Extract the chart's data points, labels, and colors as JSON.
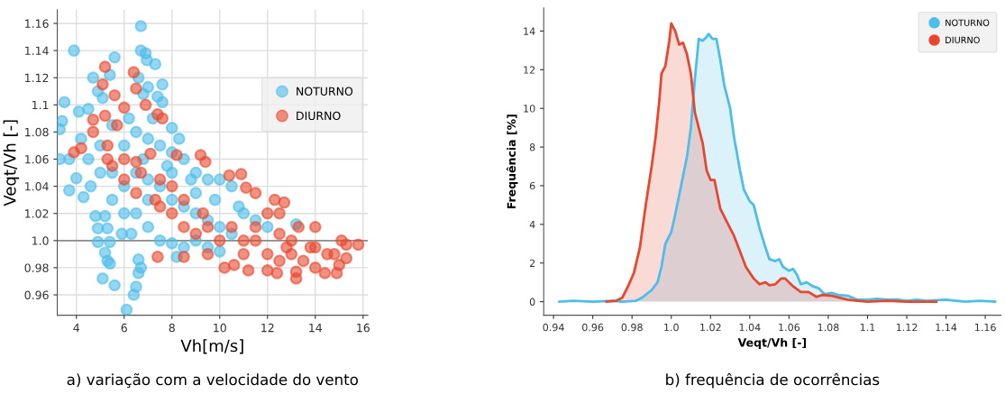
{
  "chart_data": [
    {
      "type": "scatter",
      "xlabel": "Vh[m/s]",
      "ylabel": "Veqt/Vh [-]",
      "annotations": [
        "a) variação com a velocidade do vento"
      ],
      "xlim": [
        3.2,
        16.2
      ],
      "ylim": [
        0.945,
        1.17
      ],
      "xticks": [
        4,
        6,
        8,
        10,
        12,
        14,
        16
      ],
      "yticks": [
        0.96,
        0.98,
        {
          "value": 1,
          "label": "1.0"
        },
        1.02,
        1.04,
        1.06,
        1.08,
        1.1,
        1.12,
        1.14,
        1.16
      ],
      "grid": true,
      "legend": "center right",
      "marker": "circle",
      "ref_lines": [
        {
          "axis": "y",
          "value": 1,
          "color": "#8c8c8c"
        }
      ],
      "series": [
        {
          "name": "NOTURNO",
          "color": "#4dbde9",
          "x": [
            3.9,
            6.7,
            5.6,
            6.7,
            6.9,
            6.95,
            7.3,
            4.7,
            5.4,
            6.6,
            7.0,
            7.6,
            4.9,
            5.1,
            6.8,
            7.4,
            7.6,
            3.5,
            4.1,
            3.4,
            3.3,
            4.5,
            3.3,
            3.7,
            4.2,
            4.0,
            3.7,
            4.3,
            4.8,
            5.2,
            4.9,
            5.3,
            4.9,
            5.4,
            5.2,
            5.3,
            5.4,
            5.1,
            5.6,
            6.1,
            6.4,
            6.5,
            6.6,
            6.7,
            6.6,
            8.2,
            5.9,
            6.3,
            13.2,
            6,
            6.5,
            7,
            7.5,
            8,
            8.5,
            9,
            9.5,
            10,
            10.5,
            5.5,
            5.5,
            6,
            6.5,
            7,
            7.5,
            8,
            8.5,
            9,
            9.5,
            10,
            10.5,
            11,
            11.5,
            12,
            6.5,
            7,
            7.5,
            8,
            8.5,
            9,
            9.5,
            10,
            6,
            7,
            8,
            9,
            4.5,
            5,
            5.5,
            6.2,
            7.2,
            8.0,
            8.3,
            4.6,
            5.0,
            6.8,
            7.8,
            8.8,
            9.8,
            10.8
          ],
          "values": [
            1.14,
            1.158,
            1.135,
            1.14,
            1.138,
            1.133,
            1.13,
            1.12,
            1.122,
            1.12,
            1.113,
            1.115,
            1.11,
            1.105,
            1.108,
            1.106,
            1.102,
            1.102,
            1.095,
            1.088,
            1.082,
            1.097,
            1.06,
            1.06,
            1.075,
            1.046,
            1.037,
            1.032,
            1.018,
            1.018,
            1.009,
            1.009,
            0.999,
            0.999,
            0.991,
            0.985,
            0.983,
            0.972,
            0.967,
            0.949,
            0.96,
            0.966,
            0.976,
            0.98,
            0.986,
            0.988,
            1.005,
            1.005,
            1.012,
            1.07,
            1.08,
            1.075,
            1.07,
            1.065,
            1.06,
            1.05,
            1.045,
            1.045,
            1.04,
            1.05,
            1.03,
            1.04,
            1.05,
            1.045,
            1.04,
            1.03,
            1.025,
            1.02,
            1.015,
            1.01,
            1.005,
            1.02,
            1.015,
            1.01,
            1.02,
            1.01,
            1.0,
            0.998,
            0.995,
            1.0,
            0.995,
            0.992,
            1.02,
            1.03,
            1.05,
            1.035,
            1.06,
            1.07,
            1.085,
            1.09,
            1.09,
            1.083,
            1.075,
            1.04,
            1.05,
            1.06,
            1.055,
            1.045,
            1.03,
            1.025
          ]
        },
        {
          "name": "DIURNO",
          "color": "#e8472f",
          "x": [
            5.2,
            6.4,
            5.1,
            6.5,
            5.6,
            6.9,
            6.0,
            7.4,
            7.6,
            5.2,
            4.7,
            5.7,
            4.7,
            3.9,
            4.2,
            5.3,
            5.3,
            6.5,
            7.1,
            8.2,
            9.2,
            9.4,
            10.4,
            10.9,
            11.1,
            12.3,
            12.7,
            11.5,
            7.4,
            8.5,
            10.2,
            10.6,
            11.2,
            12.0,
            12.4,
            13.2,
            13.2,
            14.0,
            14.4,
            14.9,
            15.0,
            15.3,
            15.8,
            15.1,
            15.3,
            14.8,
            14.0,
            13.3,
            12.5,
            12.0,
            11.5,
            11,
            11,
            12,
            13,
            14,
            13,
            12.5,
            10,
            9.5,
            9,
            8.5,
            8,
            7.5,
            7.3,
            6.5,
            6,
            5.5,
            6,
            6.7,
            7.5,
            8,
            8.5,
            9.3,
            9.5,
            10.5,
            11.5,
            12.5,
            13.5,
            14.5,
            13.8,
            12.8
          ],
          "values": [
            1.128,
            1.124,
            1.115,
            1.112,
            1.107,
            1.1,
            1.098,
            1.093,
            1.09,
            1.092,
            1.089,
            1.085,
            1.08,
            1.065,
            1.068,
            1.07,
            1.06,
            1.058,
            1.064,
            1.063,
            1.063,
            1.058,
            1.048,
            1.049,
            1.039,
            1.03,
            1.028,
            1.035,
            0.988,
            0.988,
            0.98,
            0.982,
            0.978,
            0.978,
            0.976,
            0.972,
            0.977,
            0.98,
            0.976,
            0.976,
            0.982,
            0.987,
            0.997,
            1.0,
            0.997,
            0.99,
            1.01,
            1.01,
            1.02,
            1.02,
            1.01,
            1.0,
            0.99,
            0.99,
            0.99,
            0.995,
            1.0,
            1.005,
            1.0,
            0.99,
            1.005,
            1.01,
            1.02,
            1.025,
            1.03,
            1.035,
            1.045,
            1.055,
            1.06,
            1.05,
            1.045,
            1.04,
            1.03,
            1.02,
            1.01,
            1.01,
            1.0,
            0.985,
            0.985,
            0.99,
            0.995,
            0.995
          ]
        }
      ]
    },
    {
      "type": "area",
      "xlabel": "Veqt/Vh [-]",
      "ylabel": "Frequência [%]",
      "annotations": [
        "b) frequência de ocorrências"
      ],
      "xlim": [
        0.935,
        1.168
      ],
      "ylim": [
        -0.7,
        15.2
      ],
      "xticks": [
        0.94,
        0.96,
        0.98,
        {
          "value": 1,
          "label": "1.0"
        },
        1.02,
        1.04,
        1.06,
        1.08,
        1.1,
        1.12,
        1.14,
        1.16
      ],
      "yticks": [
        0,
        2,
        4,
        6,
        8,
        10,
        12,
        14
      ],
      "legend": "top right",
      "series": [
        {
          "name": "NOTURNO",
          "color": "#4dbde9",
          "x": [
            0.943,
            0.95,
            0.96,
            0.97,
            0.975,
            0.982,
            0.985,
            0.99,
            0.993,
            0.995,
            0.997,
            1.0,
            1.002,
            1.005,
            1.008,
            1.01,
            1.012,
            1.014,
            1.016,
            1.018,
            1.019,
            1.021,
            1.023,
            1.025,
            1.027,
            1.03,
            1.032,
            1.035,
            1.037,
            1.04,
            1.042,
            1.045,
            1.048,
            1.05,
            1.053,
            1.055,
            1.057,
            1.06,
            1.062,
            1.064,
            1.066,
            1.069,
            1.072,
            1.075,
            1.078,
            1.082,
            1.085,
            1.09,
            1.095,
            1.1,
            1.105,
            1.11,
            1.115,
            1.12,
            1.125,
            1.13,
            1.14,
            1.145,
            1.15,
            1.157,
            1.165
          ],
          "values": [
            0,
            0.05,
            0,
            0.05,
            0,
            0.05,
            0.2,
            0.6,
            1.0,
            1.8,
            3.0,
            3.6,
            4.5,
            6.0,
            7.5,
            9.0,
            11.5,
            13.6,
            13.5,
            13.7,
            13.85,
            13.6,
            13.6,
            12.5,
            11.2,
            10.0,
            8.5,
            6.8,
            5.8,
            5.2,
            5.0,
            3.8,
            2.8,
            2.2,
            2.1,
            2.2,
            1.8,
            1.6,
            1.7,
            1.4,
            0.9,
            1.0,
            0.8,
            0.7,
            0.4,
            0.45,
            0.35,
            0.3,
            0.1,
            0.1,
            0.15,
            0.1,
            0.12,
            0.05,
            0.1,
            0.05,
            0.1,
            0.05,
            0,
            0.05,
            0
          ]
        },
        {
          "name": "DIURNO",
          "color": "#e8472f",
          "x": [
            0.967,
            0.972,
            0.975,
            0.978,
            0.981,
            0.984,
            0.987,
            0.99,
            0.992,
            0.994,
            0.995,
            0.997,
            0.999,
            1.0,
            1.002,
            1.004,
            1.006,
            1.008,
            1.01,
            1.012,
            1.014,
            1.016,
            1.018,
            1.02,
            1.022,
            1.025,
            1.028,
            1.032,
            1.035,
            1.038,
            1.042,
            1.045,
            1.048,
            1.05,
            1.053,
            1.056,
            1.058,
            1.062,
            1.066,
            1.07,
            1.074,
            1.077,
            1.082,
            1.086,
            1.09,
            1.095,
            1.1,
            1.11,
            1.12,
            1.135
          ],
          "values": [
            0,
            0.05,
            0.2,
            0.8,
            1.5,
            2.8,
            5.0,
            7.0,
            8.5,
            10.5,
            11.8,
            12.2,
            13.5,
            14.4,
            14.0,
            13.3,
            13.4,
            12.8,
            11.8,
            9.8,
            9.0,
            8.2,
            6.8,
            6.3,
            6.3,
            4.8,
            4.2,
            3.4,
            2.6,
            1.8,
            1.2,
            0.9,
            1.0,
            0.85,
            0.9,
            1.2,
            1.2,
            0.8,
            0.5,
            0.5,
            0.25,
            0.35,
            0.3,
            0.2,
            0.1,
            0.05,
            0,
            0.05,
            0,
            0
          ]
        }
      ]
    }
  ]
}
